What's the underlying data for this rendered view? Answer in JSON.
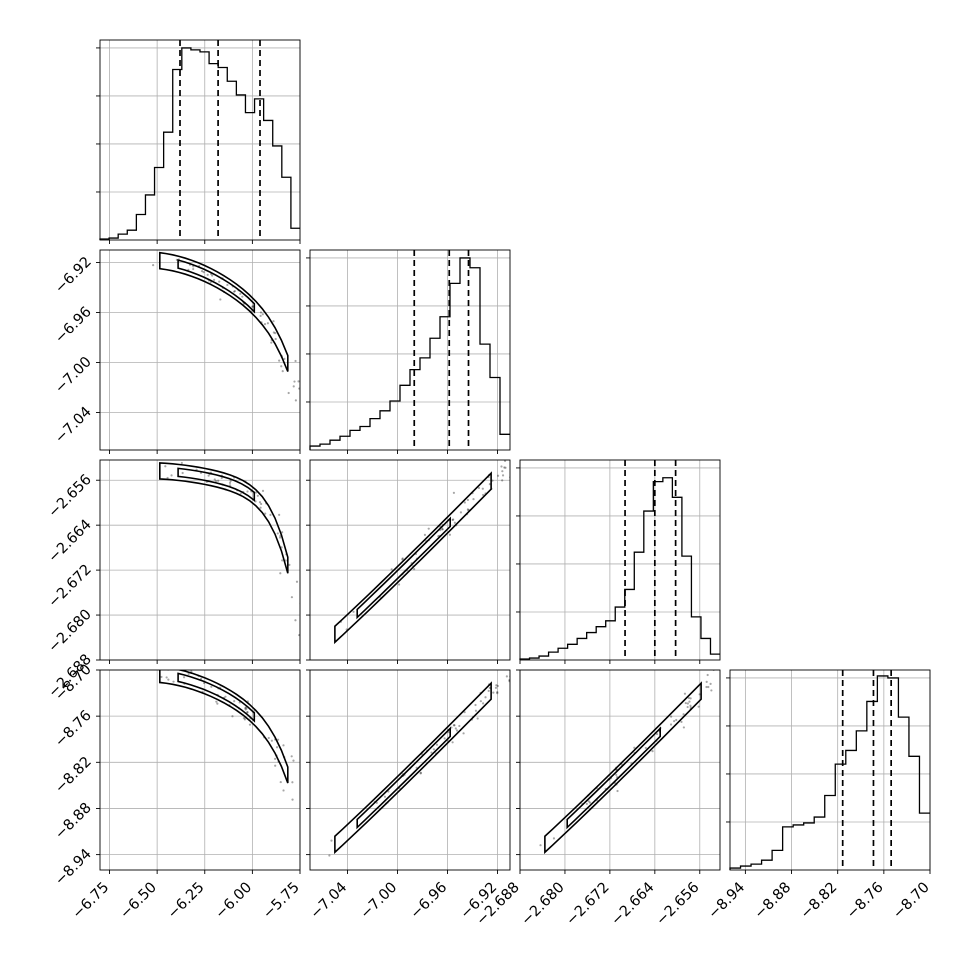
{
  "chart_data": {
    "type": "corner",
    "grid": true,
    "parameters": [
      {
        "range": [
          -6.8,
          -5.75
        ],
        "ticks": [
          "−6.75",
          "−6.50",
          "−6.25",
          "−6.00",
          "−5.75"
        ],
        "tick_values": [
          -6.75,
          -6.5,
          -6.25,
          -6.0,
          -5.75
        ],
        "quantiles": [
          -6.38,
          -6.18,
          -5.96
        ],
        "histogram": [
          0.005,
          0.01,
          0.03,
          0.05,
          0.13,
          0.23,
          0.37,
          0.55,
          0.87,
          0.98,
          0.97,
          0.96,
          0.9,
          0.88,
          0.81,
          0.74,
          0.65,
          0.72,
          0.61,
          0.48,
          0.32,
          0.06
        ]
      },
      {
        "range": [
          -7.07,
          -6.91
        ],
        "ticks": [
          "−7.04",
          "−7.00",
          "−6.96",
          "−6.92"
        ],
        "tick_values": [
          -7.04,
          -7.0,
          -6.96,
          -6.92
        ],
        "quantiles": [
          -6.9866,
          -6.9586,
          -6.9432
        ],
        "histogram": [
          0.02,
          0.03,
          0.05,
          0.07,
          0.1,
          0.12,
          0.16,
          0.2,
          0.25,
          0.33,
          0.41,
          0.47,
          0.57,
          0.68,
          0.85,
          0.98,
          0.93,
          0.54,
          0.37,
          0.08
        ]
      },
      {
        "range": [
          -2.688,
          -2.6524
        ],
        "ticks": [
          "−2.688",
          "−2.680",
          "−2.672",
          "−2.664",
          "−2.656"
        ],
        "tick_values": [
          -2.688,
          -2.68,
          -2.672,
          -2.664,
          -2.656
        ],
        "quantiles": [
          -2.6693,
          -2.664,
          -2.6603
        ],
        "histogram": [
          0.005,
          0.01,
          0.02,
          0.04,
          0.06,
          0.08,
          0.11,
          0.14,
          0.17,
          0.2,
          0.27,
          0.36,
          0.55,
          0.76,
          0.91,
          0.93,
          0.83,
          0.53,
          0.22,
          0.11,
          0.03
        ]
      },
      {
        "range": [
          -8.96,
          -8.7
        ],
        "ticks": [
          "−8.94",
          "−8.88",
          "−8.82",
          "−8.76",
          "−8.70"
        ],
        "tick_values": [
          -8.94,
          -8.88,
          -8.82,
          -8.76,
          -8.7
        ],
        "quantiles": [
          -8.8135,
          -8.7735,
          -8.7505
        ],
        "histogram": [
          0.01,
          0.02,
          0.03,
          0.05,
          0.1,
          0.22,
          0.23,
          0.24,
          0.27,
          0.38,
          0.54,
          0.61,
          0.71,
          0.86,
          0.99,
          0.98,
          0.78,
          0.58,
          0.29
        ]
      }
    ]
  }
}
